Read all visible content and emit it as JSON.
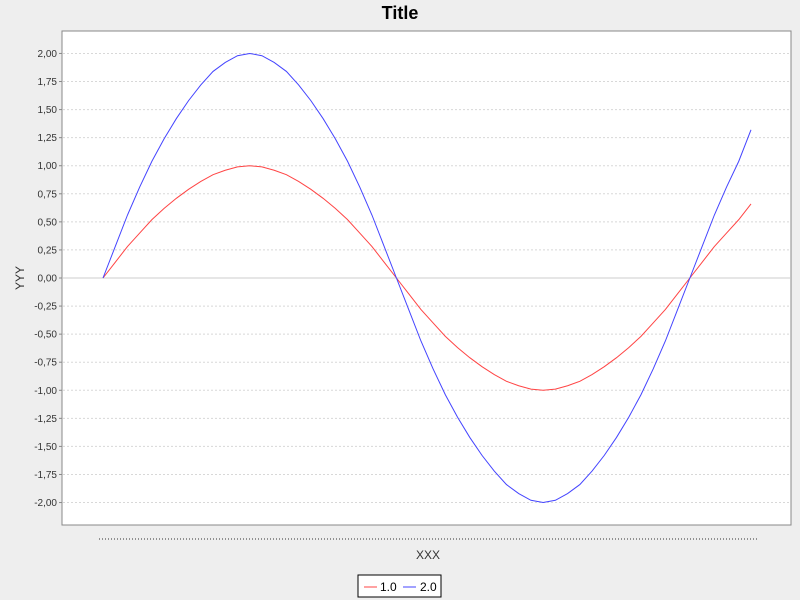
{
  "chart_data": {
    "type": "line",
    "title": "Title",
    "xlabel": "XXX",
    "ylabel": "YYY",
    "ylim": [
      -2.2,
      2.2
    ],
    "y_ticks": [
      "2,00",
      "1,75",
      "1,50",
      "1,25",
      "1,00",
      "0,75",
      "0,50",
      "0,25",
      "0,00",
      "-0,25",
      "-0,50",
      "-0,75",
      "-1,00",
      "-1,25",
      "-1,50",
      "-1,75",
      "-2,00"
    ],
    "y_tick_values": [
      2.0,
      1.75,
      1.5,
      1.25,
      1.0,
      0.75,
      0.5,
      0.25,
      0.0,
      -0.25,
      -0.5,
      -0.75,
      -1.0,
      -1.25,
      -1.5,
      -1.75,
      -2.0
    ],
    "grid": true,
    "x_axis_tick_labels_visible": false,
    "legend_position": "bottom-center",
    "series": [
      {
        "name": "1.0",
        "color": "#ff4444",
        "values": [
          0.0,
          0.14,
          0.28,
          0.4,
          0.52,
          0.62,
          0.71,
          0.79,
          0.86,
          0.92,
          0.96,
          0.99,
          1.0,
          0.99,
          0.96,
          0.92,
          0.86,
          0.79,
          0.71,
          0.62,
          0.52,
          0.4,
          0.28,
          0.14,
          0.0,
          -0.14,
          -0.28,
          -0.4,
          -0.52,
          -0.62,
          -0.71,
          -0.79,
          -0.86,
          -0.92,
          -0.96,
          -0.99,
          -1.0,
          -0.99,
          -0.96,
          -0.92,
          -0.86,
          -0.79,
          -0.71,
          -0.62,
          -0.52,
          -0.4,
          -0.28,
          -0.14,
          0.0,
          0.14,
          0.28,
          0.4,
          0.52,
          0.66
        ]
      },
      {
        "name": "2.0",
        "color": "#4444ff",
        "values": [
          0.0,
          0.28,
          0.56,
          0.81,
          1.04,
          1.24,
          1.42,
          1.58,
          1.72,
          1.84,
          1.92,
          1.98,
          2.0,
          1.98,
          1.92,
          1.84,
          1.72,
          1.58,
          1.42,
          1.24,
          1.04,
          0.81,
          0.56,
          0.28,
          0.0,
          -0.28,
          -0.56,
          -0.81,
          -1.04,
          -1.24,
          -1.42,
          -1.58,
          -1.72,
          -1.84,
          -1.92,
          -1.98,
          -2.0,
          -1.98,
          -1.92,
          -1.84,
          -1.72,
          -1.58,
          -1.42,
          -1.24,
          -1.04,
          -0.81,
          -0.56,
          -0.28,
          0.0,
          0.28,
          0.56,
          0.81,
          1.04,
          1.32
        ]
      }
    ]
  }
}
